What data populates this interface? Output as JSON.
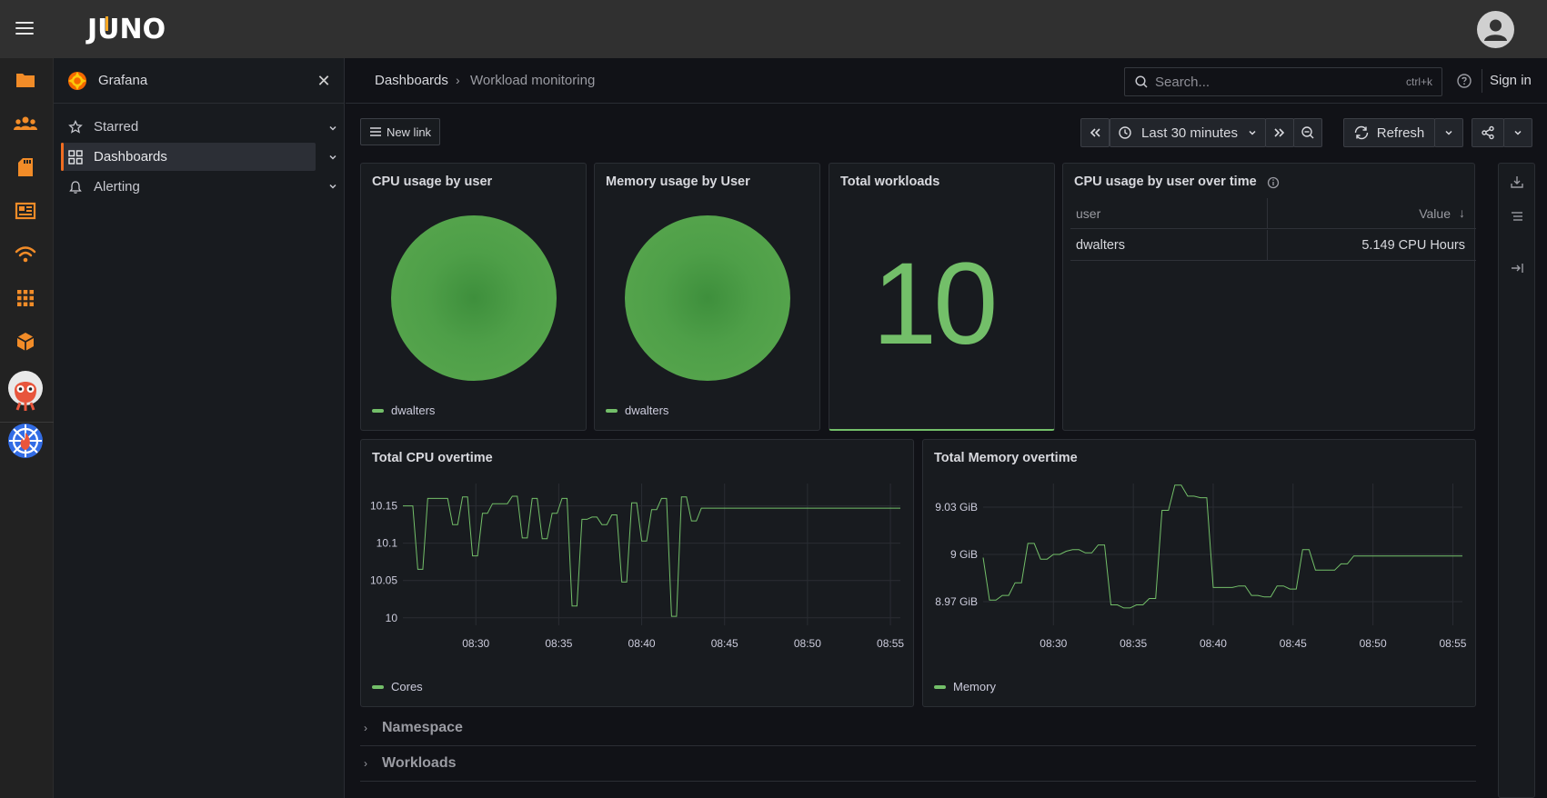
{
  "topbar": {
    "logo": "JUNO",
    "avatar": "user-avatar"
  },
  "rail": {
    "icons": [
      "folder-icon",
      "users-icon",
      "sd-card-icon",
      "newspaper-icon",
      "wifi-icon",
      "grid-icon",
      "package-icon",
      "argo-logo",
      "kubeflow-logo"
    ]
  },
  "sidebar": {
    "title": "Grafana",
    "items": [
      {
        "label": "Starred"
      },
      {
        "label": "Dashboards"
      },
      {
        "label": "Alerting"
      }
    ]
  },
  "breadcrumb": {
    "root": "Dashboards",
    "current": "Workload monitoring"
  },
  "search": {
    "placeholder": "Search...",
    "shortcut": "ctrl+k"
  },
  "header": {
    "signin": "Sign in"
  },
  "toolbar": {
    "new_link": "New link",
    "time_range": "Last 30 minutes",
    "refresh": "Refresh"
  },
  "panels": {
    "cpu_by_user": {
      "title": "CPU usage by user",
      "legend": "dwalters"
    },
    "mem_by_user": {
      "title": "Memory usage by User",
      "legend": "dwalters"
    },
    "total_workloads": {
      "title": "Total workloads",
      "value": "10"
    },
    "cpu_over_time": {
      "title": "CPU usage by user over time",
      "col_user": "user",
      "col_value": "Value",
      "row_user": "dwalters",
      "row_value": "5.149 CPU Hours"
    },
    "total_cpu": {
      "title": "Total CPU overtime",
      "legend": "Cores"
    },
    "total_mem": {
      "title": "Total Memory overtime",
      "legend": "Memory"
    }
  },
  "rows": {
    "namespace": "Namespace",
    "workloads": "Workloads"
  },
  "colors": {
    "accent": "#f28c28",
    "series": "#73bf69",
    "bg": "#111217",
    "panel": "#181b1f"
  },
  "chart_data": [
    {
      "type": "pie",
      "title": "CPU usage by user",
      "categories": [
        "dwalters"
      ],
      "values": [
        1
      ]
    },
    {
      "type": "pie",
      "title": "Memory usage by User",
      "categories": [
        "dwalters"
      ],
      "values": [
        1
      ]
    },
    {
      "type": "line",
      "title": "Total CPU overtime",
      "xlabel": "",
      "ylabel": "",
      "x_ticks": [
        "08:30",
        "08:35",
        "08:40",
        "08:45",
        "08:50",
        "08:55"
      ],
      "y_ticks": [
        "10",
        "10.05",
        "10.1",
        "10.15"
      ],
      "ylim": [
        9.99,
        10.18
      ],
      "xlim": [
        25.6,
        55.6
      ],
      "series": [
        {
          "name": "Cores",
          "x": [
            25.6,
            25.9,
            26.2,
            26.5,
            26.8,
            27.1,
            27.4,
            27.7,
            28.0,
            28.3,
            28.6,
            28.9,
            29.2,
            29.5,
            29.8,
            30.1,
            30.4,
            30.7,
            31.0,
            31.3,
            31.6,
            31.9,
            32.2,
            32.5,
            32.8,
            33.1,
            33.4,
            33.7,
            34.0,
            34.3,
            34.6,
            34.9,
            35.2,
            35.5,
            35.8,
            36.1,
            36.4,
            36.7,
            37.0,
            37.3,
            37.6,
            37.9,
            38.2,
            38.5,
            38.8,
            39.1,
            39.4,
            39.7,
            40.0,
            40.3,
            40.6,
            40.9,
            41.2,
            41.5,
            41.8,
            42.1,
            42.4,
            42.7,
            43.0,
            43.3,
            43.6,
            43.9,
            44.2,
            44.5,
            44.8,
            45.1,
            45.4,
            45.7,
            46.0,
            46.3,
            46.6,
            46.9,
            47.2,
            47.5,
            47.8,
            48.1,
            48.4,
            48.7,
            49.0,
            49.3,
            49.6,
            49.9,
            50.2,
            50.5,
            50.8,
            51.1,
            51.4,
            51.7,
            52.0,
            52.3,
            52.6,
            52.9,
            53.2,
            53.5,
            53.8,
            54.1,
            54.4,
            54.7,
            55.0,
            55.3,
            55.6
          ],
          "y": [
            10.15,
            10.15,
            10.15,
            10.065,
            10.065,
            10.16,
            10.16,
            10.16,
            10.16,
            10.16,
            10.125,
            10.125,
            10.162,
            10.162,
            10.083,
            10.083,
            10.14,
            10.14,
            10.153,
            10.153,
            10.153,
            10.153,
            10.163,
            10.163,
            10.107,
            10.107,
            10.16,
            10.16,
            10.106,
            10.106,
            10.14,
            10.14,
            10.16,
            10.16,
            10.016,
            10.016,
            10.132,
            10.132,
            10.135,
            10.135,
            10.125,
            10.125,
            10.138,
            10.138,
            10.048,
            10.048,
            10.154,
            10.154,
            10.103,
            10.103,
            10.145,
            10.145,
            10.16,
            10.16,
            10.002,
            10.002,
            10.162,
            10.162,
            10.13,
            10.13,
            10.147,
            10.147,
            10.147,
            10.147,
            10.147,
            10.147,
            10.147,
            10.147,
            10.147,
            10.147,
            10.147,
            10.147,
            10.147,
            10.147,
            10.147,
            10.147,
            10.147,
            10.147,
            10.147,
            10.147,
            10.147,
            10.147,
            10.147,
            10.147,
            10.147,
            10.147,
            10.147,
            10.147,
            10.147,
            10.147,
            10.147,
            10.147,
            10.147,
            10.147,
            10.147,
            10.147,
            10.147,
            10.147,
            10.147,
            10.147,
            10.147
          ]
        }
      ]
    },
    {
      "type": "line",
      "title": "Total Memory overtime",
      "xlabel": "",
      "ylabel": "",
      "x_ticks": [
        "08:30",
        "08:35",
        "08:40",
        "08:45",
        "08:50",
        "08:55"
      ],
      "y_ticks": [
        "8.97 GiB",
        "9 GiB",
        "9.03 GiB"
      ],
      "ylim": [
        8.955,
        9.045
      ],
      "xlim": [
        25.6,
        55.6
      ],
      "series": [
        {
          "name": "Memory",
          "x": [
            25.6,
            26.0,
            26.4,
            26.8,
            27.2,
            27.6,
            28.0,
            28.4,
            28.8,
            29.2,
            29.6,
            30.0,
            30.4,
            30.8,
            31.2,
            31.6,
            32.0,
            32.4,
            32.8,
            33.2,
            33.6,
            34.0,
            34.4,
            34.8,
            35.2,
            35.6,
            36.0,
            36.4,
            36.8,
            37.2,
            37.6,
            38.0,
            38.4,
            38.8,
            39.2,
            39.6,
            40.0,
            40.4,
            40.8,
            41.2,
            41.6,
            42.0,
            42.4,
            42.8,
            43.2,
            43.6,
            44.0,
            44.4,
            44.8,
            45.2,
            45.6,
            46.0,
            46.4,
            46.8,
            47.2,
            47.6,
            48.0,
            48.4,
            48.8,
            49.2,
            49.6,
            50.0,
            50.4,
            50.8,
            51.2,
            51.6,
            52.0,
            52.4,
            52.8,
            53.2,
            53.6,
            54.0,
            54.4,
            54.8,
            55.2,
            55.6
          ],
          "y": [
            8.998,
            8.971,
            8.971,
            8.974,
            8.974,
            8.982,
            8.982,
            9.007,
            9.007,
            8.997,
            8.997,
            9.0,
            9.0,
            9.002,
            9.003,
            9.003,
            9.001,
            9.001,
            9.006,
            9.006,
            8.968,
            8.968,
            8.966,
            8.966,
            8.968,
            8.968,
            8.972,
            8.972,
            9.028,
            9.028,
            9.044,
            9.044,
            9.037,
            9.037,
            9.036,
            9.036,
            8.979,
            8.979,
            8.979,
            8.979,
            8.98,
            8.98,
            8.974,
            8.974,
            8.973,
            8.973,
            8.98,
            8.98,
            8.978,
            8.978,
            9.003,
            9.003,
            8.99,
            8.99,
            8.99,
            8.99,
            8.994,
            8.994,
            8.999,
            8.999,
            8.999,
            8.999,
            8.999,
            8.999,
            8.999,
            8.999,
            8.999,
            8.999,
            8.999,
            8.999,
            8.999,
            8.999,
            8.999,
            8.999,
            8.999,
            8.999
          ]
        }
      ]
    }
  ]
}
